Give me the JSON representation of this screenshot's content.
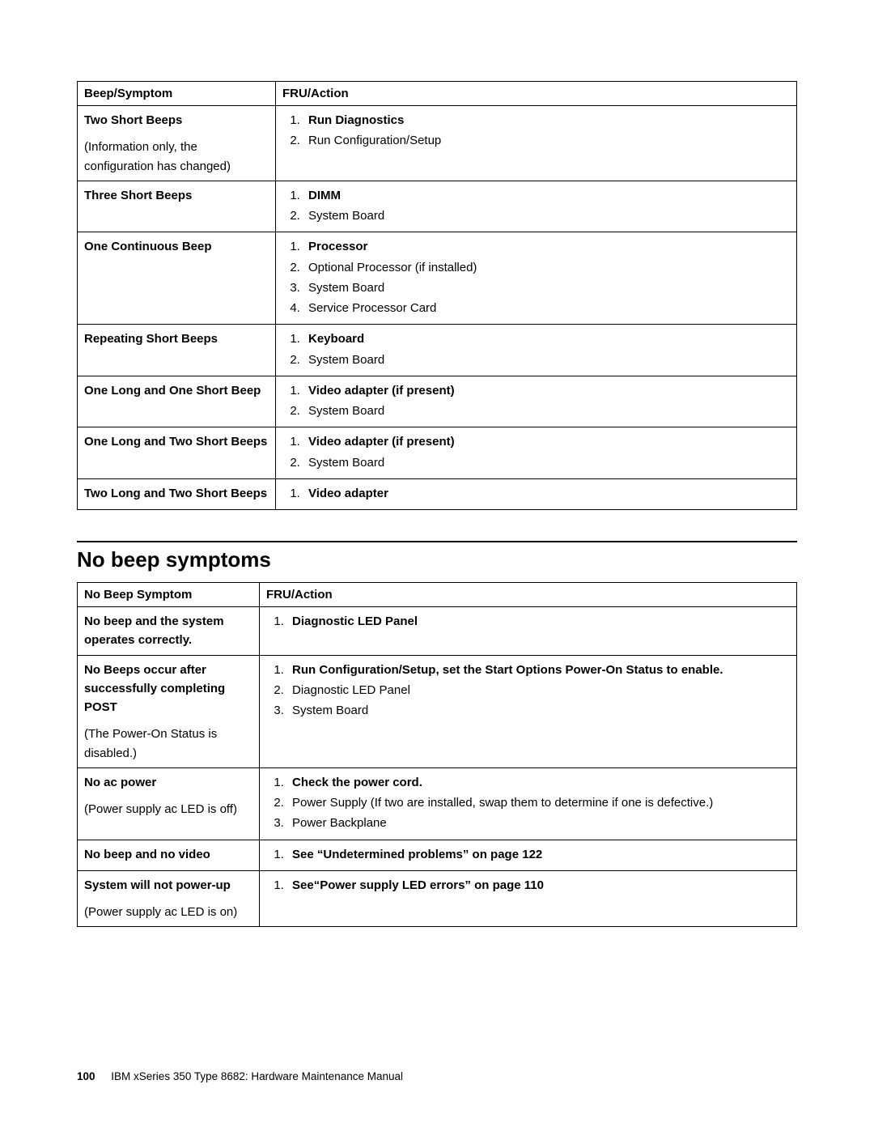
{
  "footer": {
    "page_number": "100",
    "doc_title": "IBM xSeries 350 Type 8682: Hardware Maintenance Manual"
  },
  "beep_table": {
    "headers": {
      "left": "Beep/Symptom",
      "right": "FRU/Action"
    },
    "rows": [
      {
        "symptom_bold": "Two Short Beeps",
        "symptom_note": "(Information only, the configuration has changed)",
        "actions": [
          {
            "text": "Run Diagnostics",
            "bold": true
          },
          {
            "text": "Run Configuration/Setup",
            "bold": false
          }
        ]
      },
      {
        "symptom_bold": "Three Short Beeps",
        "symptom_note": "",
        "actions": [
          {
            "text": "DIMM",
            "bold": true
          },
          {
            "text": "System Board",
            "bold": false
          }
        ]
      },
      {
        "symptom_bold": "One Continuous Beep",
        "symptom_note": "",
        "actions": [
          {
            "text": "Processor",
            "bold": true
          },
          {
            "text": "Optional Processor (if installed)",
            "bold": false
          },
          {
            "text": "System Board",
            "bold": false
          },
          {
            "text": "Service Processor Card",
            "bold": false
          }
        ]
      },
      {
        "symptom_bold": "Repeating Short Beeps",
        "symptom_note": "",
        "actions": [
          {
            "text": "Keyboard",
            "bold": true
          },
          {
            "text": "System Board",
            "bold": false
          }
        ]
      },
      {
        "symptom_bold": "One Long and One Short Beep",
        "symptom_note": "",
        "actions": [
          {
            "text": "Video adapter (if present)",
            "bold": true
          },
          {
            "text": "System Board",
            "bold": false
          }
        ]
      },
      {
        "symptom_bold": "One Long and Two Short Beeps",
        "symptom_note": "",
        "actions": [
          {
            "text": "Video adapter (if present)",
            "bold": true
          },
          {
            "text": "System Board",
            "bold": false
          }
        ]
      },
      {
        "symptom_bold": "Two Long and Two Short Beeps",
        "symptom_note": "",
        "actions": [
          {
            "text": "Video adapter",
            "bold": true
          }
        ]
      }
    ]
  },
  "section_heading": "No beep symptoms",
  "nobeep_table": {
    "headers": {
      "left": "No Beep Symptom",
      "right": "FRU/Action"
    },
    "rows": [
      {
        "symptom_bold": "No beep and the system operates correctly.",
        "symptom_note": "",
        "actions": [
          {
            "text": "Diagnostic LED Panel",
            "bold": true
          }
        ]
      },
      {
        "symptom_bold": "No Beeps occur after successfully completing POST",
        "symptom_note": "(The Power-On Status is disabled.)",
        "actions": [
          {
            "text": "Run Configuration/Setup, set the Start Options Power-On Status to enable.",
            "bold": true
          },
          {
            "text": "Diagnostic LED Panel",
            "bold": false
          },
          {
            "text": "System Board",
            "bold": false
          }
        ]
      },
      {
        "symptom_bold": "No ac power",
        "symptom_note": "(Power supply ac LED is off)",
        "actions": [
          {
            "text": "Check the power cord.",
            "bold": true
          },
          {
            "text": "Power Supply (If two are installed, swap them to determine if one is defective.)",
            "bold": false
          },
          {
            "text": "Power Backplane",
            "bold": false
          }
        ]
      },
      {
        "symptom_bold": "No beep and no video",
        "symptom_note": "",
        "actions": [
          {
            "text": "See “Undetermined problems” on page 122",
            "bold": true
          }
        ]
      },
      {
        "symptom_bold": "System will not power-up",
        "symptom_note": "(Power supply ac LED is on)",
        "actions": [
          {
            "text": "See“Power supply LED errors” on page 110",
            "bold": true
          }
        ]
      }
    ]
  }
}
